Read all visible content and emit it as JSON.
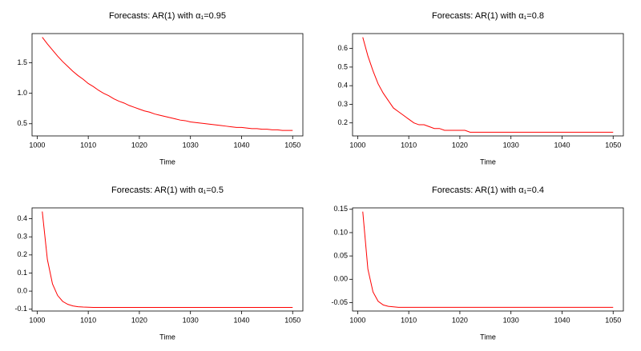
{
  "chart_data": [
    {
      "type": "line",
      "title": "Forecasts: AR(1) with α₁=0.95",
      "xlabel": "Time",
      "x": [
        1001,
        1002,
        1003,
        1004,
        1005,
        1006,
        1007,
        1008,
        1009,
        1010,
        1011,
        1012,
        1013,
        1014,
        1015,
        1016,
        1017,
        1018,
        1019,
        1020,
        1021,
        1022,
        1023,
        1024,
        1025,
        1026,
        1027,
        1028,
        1029,
        1030,
        1031,
        1032,
        1033,
        1034,
        1035,
        1036,
        1037,
        1038,
        1039,
        1040,
        1041,
        1042,
        1043,
        1044,
        1045,
        1046,
        1047,
        1048,
        1049,
        1050
      ],
      "values": [
        1.92,
        1.81,
        1.71,
        1.61,
        1.52,
        1.44,
        1.36,
        1.29,
        1.23,
        1.16,
        1.11,
        1.05,
        1.0,
        0.96,
        0.91,
        0.87,
        0.84,
        0.8,
        0.77,
        0.74,
        0.71,
        0.69,
        0.66,
        0.64,
        0.62,
        0.6,
        0.58,
        0.56,
        0.55,
        0.53,
        0.52,
        0.51,
        0.5,
        0.49,
        0.48,
        0.47,
        0.46,
        0.45,
        0.44,
        0.44,
        0.43,
        0.42,
        0.42,
        0.41,
        0.41,
        0.4,
        0.4,
        0.39,
        0.39,
        0.39
      ],
      "color": "#ff0000",
      "xlim": [
        999,
        1052
      ],
      "ylim": [
        0.3,
        1.98
      ],
      "xticks": [
        1000,
        1010,
        1020,
        1030,
        1040,
        1050
      ],
      "yticks": [
        0.5,
        {
          "value": 1,
          "label": "1.0"
        },
        1.5
      ]
    },
    {
      "type": "line",
      "title": "Forecasts: AR(1) with α₁=0.8",
      "xlabel": "Time",
      "x": [
        1001,
        1002,
        1003,
        1004,
        1005,
        1006,
        1007,
        1008,
        1009,
        1010,
        1011,
        1012,
        1013,
        1014,
        1015,
        1016,
        1017,
        1018,
        1019,
        1020,
        1021,
        1022,
        1023,
        1024,
        1025,
        1026,
        1027,
        1028,
        1029,
        1030,
        1031,
        1032,
        1033,
        1034,
        1035,
        1036,
        1037,
        1038,
        1039,
        1040,
        1041,
        1042,
        1043,
        1044,
        1045,
        1046,
        1047,
        1048,
        1049,
        1050
      ],
      "values": [
        0.66,
        0.56,
        0.48,
        0.41,
        0.36,
        0.32,
        0.28,
        0.26,
        0.24,
        0.22,
        0.2,
        0.19,
        0.19,
        0.18,
        0.17,
        0.17,
        0.16,
        0.16,
        0.16,
        0.16,
        0.16,
        0.15,
        0.15,
        0.15,
        0.15,
        0.15,
        0.15,
        0.15,
        0.15,
        0.15,
        0.15,
        0.15,
        0.15,
        0.15,
        0.15,
        0.15,
        0.15,
        0.15,
        0.15,
        0.15,
        0.15,
        0.15,
        0.15,
        0.15,
        0.15,
        0.15,
        0.15,
        0.15,
        0.15,
        0.15
      ],
      "color": "#ff0000",
      "xlim": [
        999,
        1052
      ],
      "ylim": [
        0.13,
        0.68
      ],
      "xticks": [
        1000,
        1010,
        1020,
        1030,
        1040,
        1050
      ],
      "yticks": [
        0.2,
        0.3,
        0.4,
        0.5,
        0.6
      ]
    },
    {
      "type": "line",
      "title": "Forecasts: AR(1) with α₁=0.5",
      "xlabel": "Time",
      "x": [
        1001,
        1002,
        1003,
        1004,
        1005,
        1006,
        1007,
        1008,
        1009,
        1010,
        1011,
        1012,
        1013,
        1014,
        1015,
        1016,
        1017,
        1018,
        1019,
        1020,
        1021,
        1022,
        1023,
        1024,
        1025,
        1026,
        1027,
        1028,
        1029,
        1030,
        1031,
        1032,
        1033,
        1034,
        1035,
        1036,
        1037,
        1038,
        1039,
        1040,
        1041,
        1042,
        1043,
        1044,
        1045,
        1046,
        1047,
        1048,
        1049,
        1050
      ],
      "values": [
        0.44,
        0.175,
        0.04,
        -0.024,
        -0.057,
        -0.073,
        -0.082,
        -0.086,
        -0.088,
        -0.089,
        -0.09,
        -0.09,
        -0.09,
        -0.09,
        -0.09,
        -0.09,
        -0.09,
        -0.09,
        -0.09,
        -0.09,
        -0.09,
        -0.09,
        -0.09,
        -0.09,
        -0.09,
        -0.09,
        -0.09,
        -0.09,
        -0.09,
        -0.09,
        -0.09,
        -0.09,
        -0.09,
        -0.09,
        -0.09,
        -0.09,
        -0.09,
        -0.09,
        -0.09,
        -0.09,
        -0.09,
        -0.09,
        -0.09,
        -0.09,
        -0.09,
        -0.09,
        -0.09,
        -0.09,
        -0.09,
        -0.09
      ],
      "color": "#ff0000",
      "xlim": [
        999,
        1052
      ],
      "ylim": [
        -0.11,
        0.46
      ],
      "xticks": [
        1000,
        1010,
        1020,
        1030,
        1040,
        1050
      ],
      "yticks": [
        -0.1,
        {
          "value": 0,
          "label": "0.0"
        },
        0.1,
        0.2,
        0.3,
        0.4
      ]
    },
    {
      "type": "line",
      "title": "Forecasts: AR(1) with α₁=0.4",
      "xlabel": "Time",
      "x": [
        1001,
        1002,
        1003,
        1004,
        1005,
        1006,
        1007,
        1008,
        1009,
        1010,
        1011,
        1012,
        1013,
        1014,
        1015,
        1016,
        1017,
        1018,
        1019,
        1020,
        1021,
        1022,
        1023,
        1024,
        1025,
        1026,
        1027,
        1028,
        1029,
        1030,
        1031,
        1032,
        1033,
        1034,
        1035,
        1036,
        1037,
        1038,
        1039,
        1040,
        1041,
        1042,
        1043,
        1044,
        1045,
        1046,
        1047,
        1048,
        1049,
        1050
      ],
      "values": [
        0.145,
        0.022,
        -0.027,
        -0.047,
        -0.055,
        -0.058,
        -0.059,
        -0.06,
        -0.06,
        -0.06,
        -0.06,
        -0.06,
        -0.06,
        -0.06,
        -0.06,
        -0.06,
        -0.06,
        -0.06,
        -0.06,
        -0.06,
        -0.06,
        -0.06,
        -0.06,
        -0.06,
        -0.06,
        -0.06,
        -0.06,
        -0.06,
        -0.06,
        -0.06,
        -0.06,
        -0.06,
        -0.06,
        -0.06,
        -0.06,
        -0.06,
        -0.06,
        -0.06,
        -0.06,
        -0.06,
        -0.06,
        -0.06,
        -0.06,
        -0.06,
        -0.06,
        -0.06,
        -0.06,
        -0.06,
        -0.06,
        -0.06
      ],
      "color": "#ff0000",
      "xlim": [
        999,
        1052
      ],
      "ylim": [
        -0.068,
        0.153
      ],
      "xticks": [
        1000,
        1010,
        1020,
        1030,
        1040,
        1050
      ],
      "yticks": [
        {
          "value": -0.05,
          "label": "-0.05"
        },
        {
          "value": 0,
          "label": "0.00"
        },
        0.05,
        {
          "value": 0.1,
          "label": "0.10"
        },
        0.15
      ]
    }
  ]
}
